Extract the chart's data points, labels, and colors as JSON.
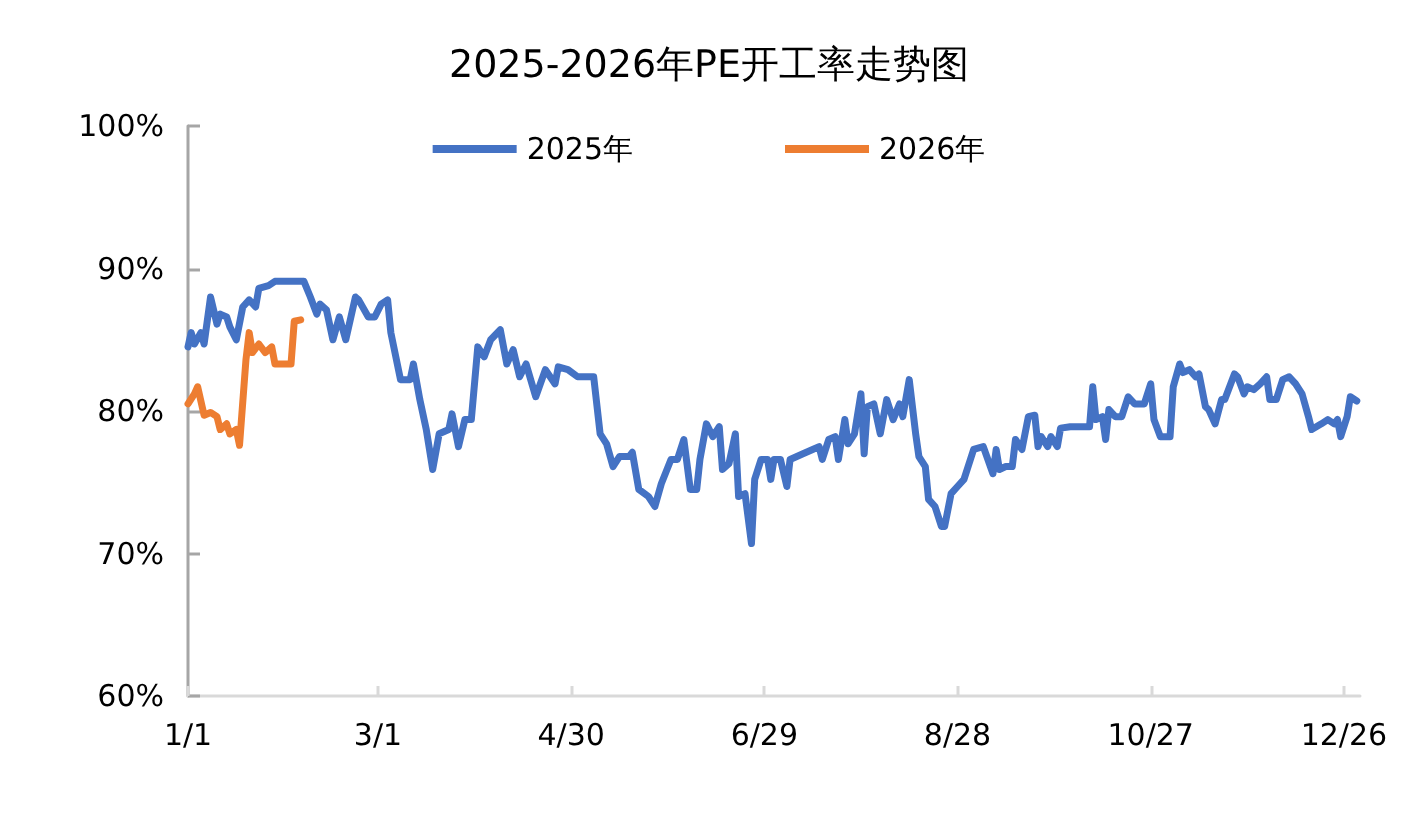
{
  "chart_data": {
    "type": "line",
    "title": "2025-2026年PE开工率走势图",
    "xlim": [
      "--01-01",
      "--12-31"
    ],
    "xticks": [
      {
        "value": "--01-01",
        "label": "1/1"
      },
      {
        "value": "--03-01",
        "label": "3/1"
      },
      {
        "value": "--04-30",
        "label": "4/30"
      },
      {
        "value": "--06-29",
        "label": "6/29"
      },
      {
        "value": "--08-28",
        "label": "8/28"
      },
      {
        "value": "--10-27",
        "label": "10/27"
      },
      {
        "value": "--12-26",
        "label": "12/26"
      }
    ],
    "ylim": [
      60,
      100
    ],
    "yticks": [
      {
        "value": 60,
        "label": "60%"
      },
      {
        "value": 70,
        "label": "70%"
      },
      {
        "value": 80,
        "label": "80%"
      },
      {
        "value": 90,
        "label": "90%"
      },
      {
        "value": 100,
        "label": "100%"
      }
    ],
    "grid": false,
    "legend": "top",
    "marker": "none",
    "line_style": "solid",
    "series": [
      {
        "name": "2025年",
        "color": "#4472c4",
        "x": [
          "--01-01",
          "--01-02",
          "--01-03",
          "--01-05",
          "--01-06",
          "--01-08",
          "--01-10",
          "--01-11",
          "--01-13",
          "--01-14",
          "--01-16",
          "--01-18",
          "--01-20",
          "--01-22",
          "--01-23",
          "--01-26",
          "--01-28",
          "--02-06",
          "--02-08",
          "--02-10",
          "--02-11",
          "--02-13",
          "--02-15",
          "--02-17",
          "--02-19",
          "--02-22",
          "--02-23",
          "--02-26",
          "--02-28",
          "--03-02",
          "--03-04",
          "--03-05",
          "--03-08",
          "--03-11",
          "--03-12",
          "--03-14",
          "--03-16",
          "--03-18",
          "--03-20",
          "--03-23",
          "--03-24",
          "--03-26",
          "--03-28",
          "--03-30",
          "--04-01",
          "--04-03",
          "--04-05",
          "--04-08",
          "--04-10",
          "--04-12",
          "--04-14",
          "--04-16",
          "--04-19",
          "--04-22",
          "--04-25",
          "--04-26",
          "--04-29",
          "--05-02",
          "--05-07",
          "--05-09",
          "--05-11",
          "--05-13",
          "--05-15",
          "--05-18",
          "--05-19",
          "--05-21",
          "--05-24",
          "--05-26",
          "--05-28",
          "--05-31",
          "--06-02",
          "--06-04",
          "--06-06",
          "--06-08",
          "--06-09",
          "--06-11",
          "--06-13",
          "--06-15",
          "--06-16",
          "--06-18",
          "--06-20",
          "--06-21",
          "--06-23",
          "--06-25",
          "--06-26",
          "--06-28",
          "--06-30",
          "--07-01",
          "--07-02",
          "--07-04",
          "--07-06",
          "--07-07",
          "--07-11",
          "--07-14",
          "--07-16",
          "--07-17",
          "--07-19",
          "--07-21",
          "--07-22",
          "--07-24",
          "--07-25",
          "--07-27",
          "--07-29",
          "--07-30",
          "--07-31",
          "--08-02",
          "--08-04",
          "--08-06",
          "--08-08",
          "--08-10",
          "--08-11",
          "--08-13",
          "--08-15",
          "--08-16",
          "--08-18",
          "--08-19",
          "--08-21",
          "--08-23",
          "--08-24",
          "--08-26",
          "--08-28",
          "--08-30",
          "--09-02",
          "--09-05",
          "--09-08",
          "--09-09",
          "--09-10",
          "--09-12",
          "--09-14",
          "--09-15",
          "--09-17",
          "--09-19",
          "--09-21",
          "--09-22",
          "--09-23",
          "--09-25",
          "--09-26",
          "--09-28",
          "--09-29",
          "--10-02",
          "--10-08",
          "--10-09",
          "--10-10",
          "--10-12",
          "--10-13",
          "--10-14",
          "--10-16",
          "--10-18",
          "--10-20",
          "--10-22",
          "--10-25",
          "--10-27",
          "--10-28",
          "--10-30",
          "--11-02",
          "--11-03",
          "--11-05",
          "--11-06",
          "--11-08",
          "--11-10",
          "--11-11",
          "--11-13",
          "--11-14",
          "--11-16",
          "--11-18",
          "--11-19",
          "--11-22",
          "--11-23",
          "--11-25",
          "--11-26",
          "--11-28",
          "--11-30",
          "--12-02",
          "--12-03",
          "--12-05",
          "--12-07",
          "--12-09",
          "--12-11",
          "--12-13",
          "--12-15",
          "--12-16",
          "--12-19",
          "--12-21",
          "--12-23",
          "--12-24",
          "--12-25",
          "--12-27",
          "--12-28",
          "--12-30"
        ],
        "values": [
          84.5,
          85.5,
          84.7,
          85.5,
          84.7,
          88.0,
          86.1,
          86.8,
          86.6,
          85.9,
          85.0,
          87.3,
          87.8,
          87.3,
          88.6,
          88.8,
          89.1,
          89.1,
          88.0,
          86.8,
          87.5,
          87.1,
          85.0,
          86.6,
          85.0,
          88.0,
          87.8,
          86.6,
          86.6,
          87.5,
          87.8,
          85.5,
          82.2,
          82.2,
          83.3,
          80.8,
          78.7,
          75.9,
          78.4,
          78.7,
          79.8,
          77.5,
          79.4,
          79.4,
          84.5,
          83.8,
          85.0,
          85.7,
          83.3,
          84.3,
          82.4,
          83.3,
          81.0,
          82.9,
          81.9,
          83.1,
          82.9,
          82.4,
          82.4,
          78.4,
          77.7,
          76.1,
          76.8,
          76.8,
          77.1,
          74.5,
          74.0,
          73.3,
          74.9,
          76.6,
          76.6,
          78.0,
          74.5,
          74.5,
          76.6,
          79.1,
          78.2,
          78.9,
          75.9,
          76.3,
          78.4,
          74.0,
          74.2,
          70.7,
          75.2,
          76.6,
          76.6,
          75.2,
          76.6,
          76.6,
          74.7,
          76.6,
          77.0,
          77.3,
          77.5,
          76.6,
          78.0,
          78.2,
          76.6,
          79.4,
          77.7,
          78.4,
          81.2,
          77.0,
          80.3,
          80.5,
          78.4,
          80.8,
          79.4,
          80.5,
          79.6,
          82.2,
          78.4,
          76.8,
          76.1,
          73.8,
          73.3,
          71.9,
          71.9,
          74.2,
          74.7,
          75.2,
          77.3,
          77.5,
          75.6,
          77.3,
          75.9,
          76.1,
          76.1,
          78.0,
          77.3,
          79.6,
          79.7,
          77.5,
          78.2,
          77.5,
          78.2,
          77.5,
          78.8,
          78.9,
          78.9,
          81.7,
          79.4,
          79.6,
          78.0,
          80.1,
          79.6,
          79.6,
          81.0,
          80.5,
          80.5,
          81.9,
          79.4,
          78.2,
          78.2,
          81.7,
          83.3,
          82.7,
          82.9,
          82.4,
          82.6,
          80.3,
          80.1,
          79.1,
          80.8,
          80.8,
          82.6,
          82.4,
          81.2,
          81.7,
          81.5,
          81.9,
          82.4,
          80.8,
          80.8,
          82.2,
          82.4,
          81.9,
          81.2,
          79.6,
          78.7,
          79.1,
          79.4,
          79.1,
          79.4,
          78.2,
          79.6,
          81.0,
          80.7
        ]
      },
      {
        "name": "2026年",
        "color": "#ed7d31",
        "x": [
          "--01-01",
          "--01-03",
          "--01-04",
          "--01-06",
          "--01-08",
          "--01-10",
          "--01-11",
          "--01-13",
          "--01-14",
          "--01-16",
          "--01-17",
          "--01-19",
          "--01-20",
          "--01-21",
          "--01-23",
          "--01-25",
          "--01-27",
          "--01-28",
          "--02-02",
          "--02-03",
          "--02-05"
        ],
        "values": [
          80.5,
          81.2,
          81.7,
          79.7,
          79.9,
          79.6,
          78.7,
          79.1,
          78.4,
          78.7,
          77.6,
          83.6,
          85.5,
          84.1,
          84.7,
          84.1,
          84.5,
          83.3,
          83.3,
          86.3,
          86.4
        ]
      }
    ]
  }
}
